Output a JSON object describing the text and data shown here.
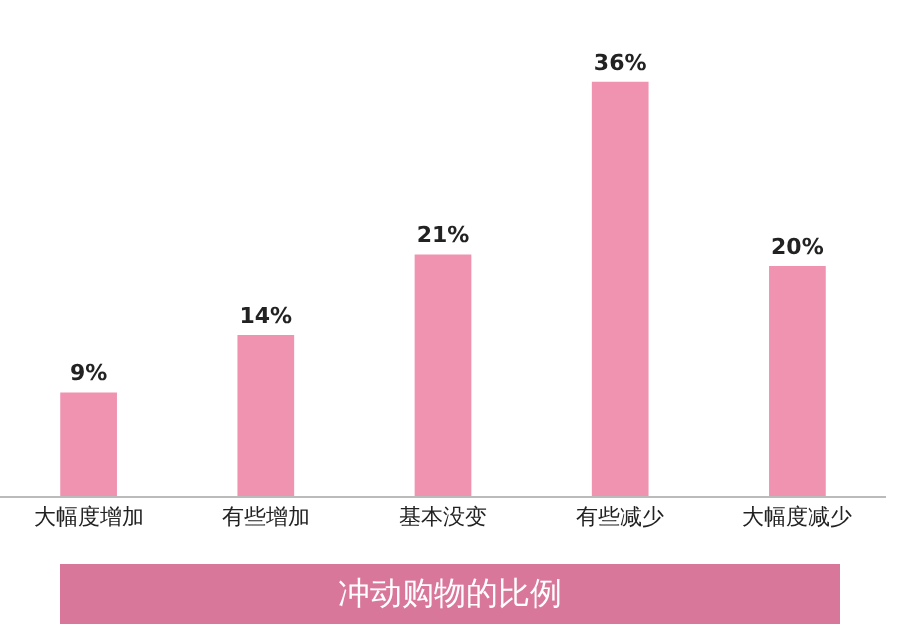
{
  "chart_data": {
    "type": "bar",
    "title": "冲动购物的比例",
    "categories": [
      "大幅度增加",
      "有些增加",
      "基本没变",
      "有些减少",
      "大幅度减少"
    ],
    "values": [
      9,
      14,
      21,
      36,
      20
    ],
    "value_labels": [
      "9%",
      "14%",
      "21%",
      "36%",
      "20%"
    ],
    "color": "#f093b0",
    "grid": false,
    "legend": false,
    "tick_labels": "x"
  }
}
